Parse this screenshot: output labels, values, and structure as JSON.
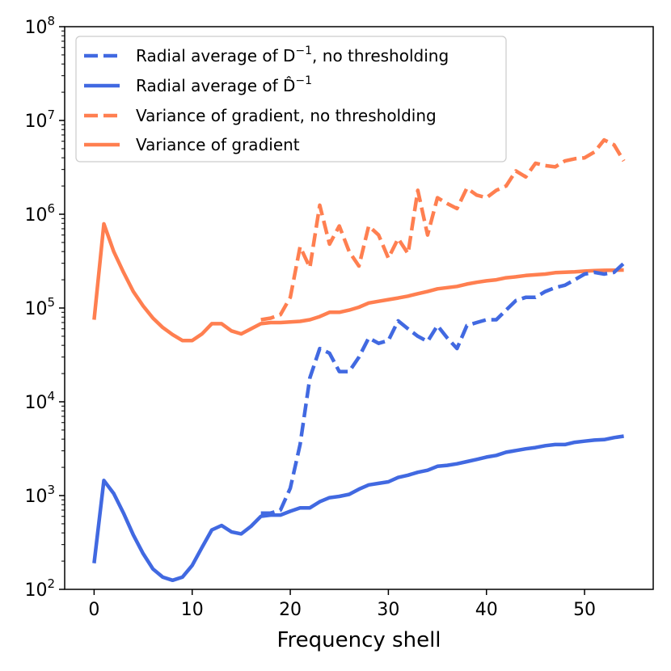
{
  "chart_data": {
    "type": "line",
    "title": "",
    "xlabel": "Frequency shell",
    "ylabel": "",
    "yscale": "log",
    "xlim": [
      -3,
      57
    ],
    "ylim": [
      100,
      100000000
    ],
    "xticks": [
      0,
      10,
      20,
      30,
      40,
      50
    ],
    "yticks": [
      {
        "value": 100,
        "base": "10",
        "exp": "2"
      },
      {
        "value": 1000,
        "base": "10",
        "exp": "3"
      },
      {
        "value": 10000,
        "base": "10",
        "exp": "4"
      },
      {
        "value": 100000,
        "base": "10",
        "exp": "5"
      },
      {
        "value": 1000000,
        "base": "10",
        "exp": "6"
      },
      {
        "value": 10000000,
        "base": "10",
        "exp": "7"
      },
      {
        "value": 100000000,
        "base": "10",
        "exp": "8"
      }
    ],
    "legend_position": "top-left",
    "legend": [
      {
        "text_main": "Radial average of D",
        "superscript": "−1",
        "text_tail": ", no thresholding",
        "color": "#4169e1",
        "dashed": true
      },
      {
        "text_main": "Radial average of D̂",
        "superscript": "−1",
        "text_tail": "",
        "color": "#4169e1",
        "dashed": false
      },
      {
        "text_main": "Variance of gradient, no thresholding",
        "superscript": "",
        "text_tail": "",
        "color": "#ff7f50",
        "dashed": true
      },
      {
        "text_main": "Variance of gradient",
        "superscript": "",
        "text_tail": "",
        "color": "#ff7f50",
        "dashed": false
      }
    ],
    "series": [
      {
        "name": "Radial average of D^-1, no thresholding",
        "color": "#4169e1",
        "dashed": true,
        "x": [
          17,
          18,
          19,
          20,
          21,
          22,
          23,
          24,
          25,
          26,
          27,
          28,
          29,
          30,
          31,
          32,
          33,
          34,
          35,
          36,
          37,
          38,
          39,
          40,
          41,
          42,
          43,
          44,
          45,
          46,
          47,
          48,
          49,
          50,
          51,
          52,
          53,
          54
        ],
        "values": [
          650,
          650,
          700,
          1200,
          3500,
          18000,
          37000,
          33000,
          21000,
          21000,
          30000,
          48000,
          42000,
          45000,
          73000,
          60000,
          50000,
          44000,
          65000,
          48000,
          37000,
          65000,
          70000,
          75000,
          75000,
          95000,
          120000,
          130000,
          130000,
          150000,
          165000,
          175000,
          200000,
          230000,
          240000,
          230000,
          240000,
          300000
        ]
      },
      {
        "name": "Radial average of D-hat^-1",
        "color": "#4169e1",
        "dashed": false,
        "x": [
          0,
          1,
          2,
          3,
          4,
          5,
          6,
          7,
          8,
          9,
          10,
          11,
          12,
          13,
          14,
          15,
          16,
          17,
          18,
          19,
          20,
          21,
          22,
          23,
          24,
          25,
          26,
          27,
          28,
          29,
          30,
          31,
          32,
          33,
          34,
          35,
          36,
          37,
          38,
          39,
          40,
          41,
          42,
          43,
          44,
          45,
          46,
          47,
          48,
          49,
          50,
          51,
          52,
          53,
          54
        ],
        "values": [
          190,
          1450,
          1050,
          650,
          380,
          240,
          165,
          135,
          125,
          135,
          180,
          280,
          430,
          480,
          410,
          390,
          470,
          600,
          620,
          620,
          680,
          740,
          740,
          860,
          950,
          980,
          1030,
          1170,
          1300,
          1350,
          1400,
          1560,
          1650,
          1770,
          1860,
          2050,
          2100,
          2180,
          2300,
          2430,
          2570,
          2680,
          2900,
          3020,
          3150,
          3250,
          3400,
          3500,
          3500,
          3700,
          3800,
          3900,
          3950,
          4150,
          4300
        ]
      },
      {
        "name": "Variance of gradient, no thresholding",
        "color": "#ff7f50",
        "dashed": true,
        "x": [
          17,
          18,
          19,
          20,
          21,
          22,
          23,
          24,
          25,
          26,
          27,
          28,
          29,
          30,
          31,
          32,
          33,
          34,
          35,
          36,
          37,
          38,
          39,
          40,
          41,
          42,
          43,
          44,
          45,
          46,
          47,
          48,
          49,
          50,
          51,
          52,
          53,
          54
        ],
        "values": [
          75000,
          78000,
          85000,
          130000,
          450000,
          270000,
          1250000,
          480000,
          750000,
          400000,
          280000,
          750000,
          600000,
          340000,
          550000,
          380000,
          1800000,
          600000,
          1500000,
          1300000,
          1150000,
          1900000,
          1600000,
          1500000,
          1800000,
          2000000,
          2900000,
          2500000,
          3500000,
          3300000,
          3200000,
          3700000,
          3900000,
          4000000,
          4600000,
          6200000,
          5500000,
          3700000
        ]
      },
      {
        "name": "Variance of gradient",
        "color": "#ff7f50",
        "dashed": false,
        "x": [
          0,
          1,
          2,
          3,
          4,
          5,
          6,
          7,
          8,
          9,
          10,
          11,
          12,
          13,
          14,
          15,
          16,
          17,
          18,
          19,
          20,
          21,
          22,
          23,
          24,
          25,
          26,
          27,
          28,
          29,
          30,
          31,
          32,
          33,
          34,
          35,
          36,
          37,
          38,
          39,
          40,
          41,
          42,
          43,
          44,
          45,
          46,
          47,
          48,
          49,
          50,
          51,
          52,
          53,
          54
        ],
        "values": [
          75000,
          790000,
          400000,
          240000,
          150000,
          105000,
          78000,
          62000,
          52000,
          45000,
          45000,
          53000,
          68000,
          68000,
          57000,
          53000,
          60000,
          68000,
          70000,
          70000,
          71000,
          72000,
          75000,
          81000,
          90000,
          90000,
          95000,
          102000,
          113000,
          118000,
          123000,
          128000,
          134000,
          142000,
          150000,
          160000,
          165000,
          170000,
          180000,
          188000,
          195000,
          200000,
          210000,
          215000,
          222000,
          226000,
          230000,
          238000,
          241000,
          243000,
          247000,
          250000,
          252000,
          253000,
          254000
        ]
      }
    ]
  }
}
